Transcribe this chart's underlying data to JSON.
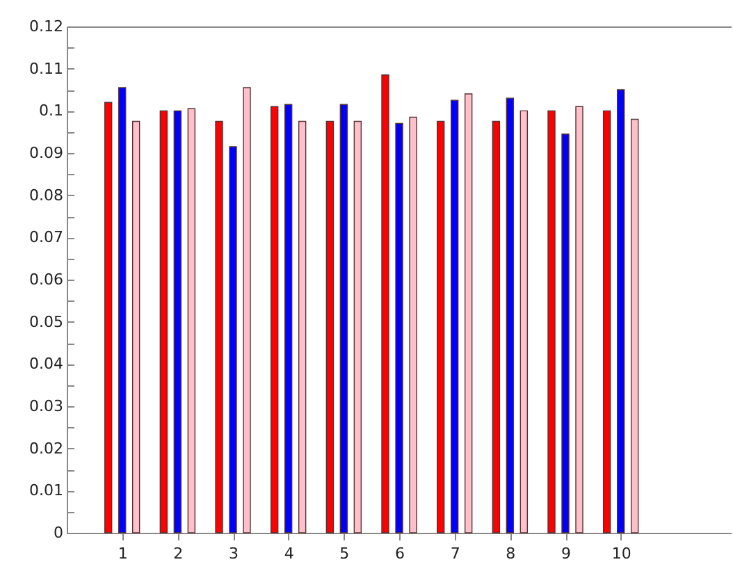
{
  "chart_data": {
    "type": "bar",
    "x": [
      1,
      2,
      3,
      4,
      5,
      6,
      7,
      8,
      9,
      10
    ],
    "xlim": [
      0,
      12
    ],
    "xticks": [
      1,
      2,
      3,
      4,
      5,
      6,
      7,
      8,
      9,
      10
    ],
    "ylim": [
      0,
      0.12
    ],
    "yticks": [
      0,
      {
        "value": 0.005,
        "label": null
      },
      0.01,
      {
        "value": 0.015,
        "label": null
      },
      0.02,
      {
        "value": 0.025,
        "label": null
      },
      0.03,
      {
        "value": 0.035,
        "label": null
      },
      0.04,
      {
        "value": 0.045,
        "label": null
      },
      0.05,
      {
        "value": 0.055,
        "label": null
      },
      0.06,
      {
        "value": 0.065,
        "label": null
      },
      0.07,
      {
        "value": 0.075,
        "label": null
      },
      0.08,
      {
        "value": 0.085,
        "label": null
      },
      0.09,
      {
        "value": 0.095,
        "label": null
      },
      0.1,
      {
        "value": 0.105,
        "label": null
      },
      0.11,
      {
        "value": 0.115,
        "label": null
      },
      0.12
    ],
    "series": [
      {
        "color": "#ff0000",
        "values": [
          0.102,
          0.1,
          0.0975,
          0.101,
          0.0975,
          0.1085,
          0.0975,
          0.0975,
          0.1,
          0.1
        ]
      },
      {
        "color": "#0000ff",
        "values": [
          0.1055,
          0.1,
          0.0915,
          0.1015,
          0.1015,
          0.097,
          0.1025,
          0.103,
          0.0945,
          0.105
        ]
      },
      {
        "color": "#ffc0cb",
        "values": [
          0.0975,
          0.1005,
          0.1055,
          0.0975,
          0.0975,
          0.0985,
          0.104,
          0.1,
          0.101,
          0.098
        ]
      }
    ]
  }
}
